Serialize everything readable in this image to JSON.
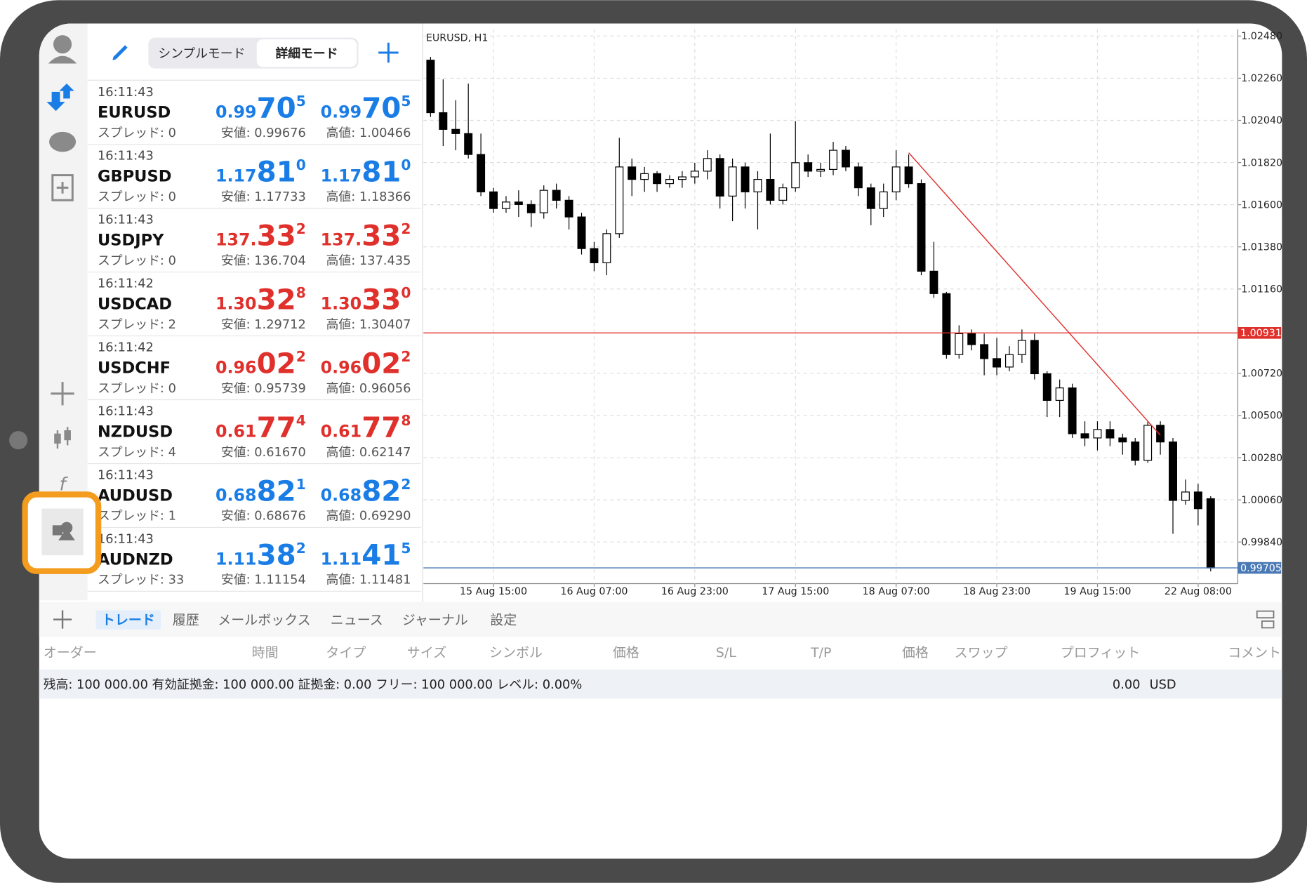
{
  "toolbar": {
    "modes": [
      "シンプルモード",
      "詳細モード"
    ]
  },
  "quotes": [
    {
      "time": "16:11:43",
      "symbol": "EURUSD",
      "spread": "スプレッド: 0",
      "bid": [
        "0.99",
        "70",
        "5"
      ],
      "ask": [
        "0.99",
        "70",
        "5"
      ],
      "low": "安値: 0.99676",
      "high": "高値: 1.00466",
      "color": "#1a7de6"
    },
    {
      "time": "16:11:43",
      "symbol": "GBPUSD",
      "spread": "スプレッド: 0",
      "bid": [
        "1.17",
        "81",
        "0"
      ],
      "ask": [
        "1.17",
        "81",
        "0"
      ],
      "low": "安値: 1.17733",
      "high": "高値: 1.18366",
      "color": "#1a7de6"
    },
    {
      "time": "16:11:43",
      "symbol": "USDJPY",
      "spread": "スプレッド: 0",
      "bid": [
        "137.",
        "33",
        "2"
      ],
      "ask": [
        "137.",
        "33",
        "2"
      ],
      "low": "安値: 136.704",
      "high": "高値: 137.435",
      "color": "#e0302c"
    },
    {
      "time": "16:11:42",
      "symbol": "USDCAD",
      "spread": "スプレッド: 2",
      "bid": [
        "1.30",
        "32",
        "8"
      ],
      "ask": [
        "1.30",
        "33",
        "0"
      ],
      "low": "安値: 1.29712",
      "high": "高値: 1.30407",
      "color": "#e0302c"
    },
    {
      "time": "16:11:42",
      "symbol": "USDCHF",
      "spread": "スプレッド: 0",
      "bid": [
        "0.96",
        "02",
        "2"
      ],
      "ask": [
        "0.96",
        "02",
        "2"
      ],
      "low": "安値: 0.95739",
      "high": "高値: 0.96056",
      "color": "#e0302c"
    },
    {
      "time": "16:11:43",
      "symbol": "NZDUSD",
      "spread": "スプレッド: 4",
      "bid": [
        "0.61",
        "77",
        "4"
      ],
      "ask": [
        "0.61",
        "77",
        "8"
      ],
      "low": "安値: 0.61670",
      "high": "高値: 0.62147",
      "color": "#e0302c"
    },
    {
      "time": "16:11:43",
      "symbol": "AUDUSD",
      "spread": "スプレッド: 1",
      "bid": [
        "0.68",
        "82",
        "1"
      ],
      "ask": [
        "0.68",
        "82",
        "2"
      ],
      "low": "安値: 0.68676",
      "high": "高値: 0.69290",
      "color": "#1a7de6"
    },
    {
      "time": "16:11:43",
      "symbol": "AUDNZD",
      "spread": "スプレッド: 33",
      "bid": [
        "1.11",
        "38",
        "2"
      ],
      "ask": [
        "1.11",
        "41",
        "5"
      ],
      "low": "安値: 1.11154",
      "high": "高値: 1.11481",
      "color": "#1a7de6"
    }
  ],
  "chart_data": {
    "type": "candlestick",
    "title": "EURUSD, H1",
    "categories": [
      null,
      null,
      null,
      null,
      null,
      "15 Aug 15:00",
      null,
      null,
      null,
      null,
      null,
      null,
      null,
      "16 Aug 07:00",
      null,
      null,
      null,
      null,
      null,
      null,
      null,
      "16 Aug 23:00",
      null,
      null,
      null,
      null,
      null,
      null,
      null,
      "17 Aug 15:00",
      null,
      null,
      null,
      null,
      null,
      null,
      null,
      "18 Aug 07:00",
      null,
      null,
      null,
      null,
      null,
      null,
      null,
      "18 Aug 23:00",
      null,
      null,
      null,
      null,
      null,
      null,
      null,
      "19 Aug 15:00",
      null,
      null,
      null,
      null,
      null,
      null,
      null,
      "22 Aug 08:00",
      null
    ],
    "ohlc": [
      [
        1.02354,
        1.02371,
        1.02058,
        1.0208
      ],
      [
        1.0208,
        1.02254,
        1.01906,
        1.01993
      ],
      [
        1.01993,
        1.02145,
        1.01884,
        1.01971
      ],
      [
        1.01971,
        1.02232,
        1.01841,
        1.01862
      ],
      [
        1.01862,
        1.01971,
        1.01645,
        1.01667
      ],
      [
        1.01667,
        1.01688,
        1.01558,
        1.0158
      ],
      [
        1.0158,
        1.01645,
        1.01558,
        1.01614
      ],
      [
        1.01614,
        1.01675,
        1.01536,
        1.01601
      ],
      [
        1.01601,
        1.01623,
        1.01484,
        1.01558
      ],
      [
        1.01558,
        1.01701,
        1.01527,
        1.01675
      ],
      [
        1.01675,
        1.0171,
        1.0158,
        1.01623
      ],
      [
        1.01623,
        1.01645,
        1.01471,
        1.01536
      ],
      [
        1.01536,
        1.01558,
        1.0134,
        1.01371
      ],
      [
        1.01371,
        1.01406,
        1.01253,
        1.01297
      ],
      [
        1.01297,
        1.01471,
        1.01232,
        1.01449
      ],
      [
        1.01449,
        1.01949,
        1.01427,
        1.01797
      ],
      [
        1.01797,
        1.01841,
        1.01645,
        1.01732
      ],
      [
        1.01732,
        1.01797,
        1.01667,
        1.01762
      ],
      [
        1.01762,
        1.01775,
        1.01667,
        1.0171
      ],
      [
        1.0171,
        1.01754,
        1.01688,
        1.01732
      ],
      [
        1.01732,
        1.01775,
        1.01688,
        1.01745
      ],
      [
        1.01745,
        1.01819,
        1.0171,
        1.01775
      ],
      [
        1.01775,
        1.01884,
        1.01732,
        1.01841
      ],
      [
        1.01841,
        1.01862,
        1.0158,
        1.01645
      ],
      [
        1.01645,
        1.01841,
        1.01514,
        1.01797
      ],
      [
        1.01797,
        1.01819,
        1.0158,
        1.01667
      ],
      [
        1.01667,
        1.01775,
        1.01471,
        1.01732
      ],
      [
        1.01732,
        1.01971,
        1.01601,
        1.01623
      ],
      [
        1.01623,
        1.0171,
        1.01601,
        1.01688
      ],
      [
        1.01688,
        1.02036,
        1.01667,
        1.01819
      ],
      [
        1.01819,
        1.01862,
        1.01745,
        1.01775
      ],
      [
        1.01775,
        1.01819,
        1.01745,
        1.01784
      ],
      [
        1.01784,
        1.01928,
        1.01754,
        1.01884
      ],
      [
        1.01884,
        1.01906,
        1.01775,
        1.01797
      ],
      [
        1.01797,
        1.01819,
        1.01645,
        1.01688
      ],
      [
        1.01688,
        1.0171,
        1.01493,
        1.0158
      ],
      [
        1.0158,
        1.0171,
        1.01536,
        1.01667
      ],
      [
        1.01667,
        1.01884,
        1.01623,
        1.01797
      ],
      [
        1.01797,
        1.01862,
        1.01688,
        1.0171
      ],
      [
        1.0171,
        1.01732,
        1.01232,
        1.01253
      ],
      [
        1.01253,
        1.01406,
        1.01114,
        1.01136
      ],
      [
        1.01136,
        1.01145,
        1.00797,
        1.00818
      ],
      [
        1.00818,
        1.00971,
        1.00797,
        1.00927
      ],
      [
        1.00927,
        1.00949,
        1.0084,
        1.0087
      ],
      [
        1.0087,
        1.00927,
        1.0071,
        1.00797
      ],
      [
        1.00797,
        1.00905,
        1.0071,
        1.00753
      ],
      [
        1.00753,
        1.00862,
        1.00731,
        1.00818
      ],
      [
        1.00818,
        1.00949,
        1.00775,
        1.00892
      ],
      [
        1.00892,
        1.00927,
        1.00688,
        1.00718
      ],
      [
        1.00718,
        1.00731,
        1.00492,
        1.00579
      ],
      [
        1.00579,
        1.00688,
        1.00492,
        1.00644
      ],
      [
        1.00644,
        1.00666,
        1.00383,
        1.00405
      ],
      [
        1.00405,
        1.0047,
        1.0034,
        1.00383
      ],
      [
        1.00383,
        1.0047,
        1.00318,
        1.00427
      ],
      [
        1.00427,
        1.0047,
        1.0034,
        1.00383
      ],
      [
        1.00383,
        1.00405,
        1.00296,
        1.00362
      ],
      [
        1.00362,
        1.00383,
        1.0024,
        1.00266
      ],
      [
        1.00266,
        1.0047,
        1.00253,
        1.00449
      ],
      [
        1.00449,
        1.0047,
        1.00296,
        1.00362
      ],
      [
        1.00362,
        1.00383,
        0.99883,
        1.00057
      ],
      [
        1.00057,
        1.00166,
        1.00035,
        1.00101
      ],
      [
        1.00101,
        1.00144,
        0.99927,
        1.00014
      ],
      [
        1.00066,
        1.00079,
        0.99687,
        0.99705
      ]
    ],
    "ylim": [
      0.99623,
      1.02515
    ],
    "yticks": [
      {
        "value": 1.0248,
        "label": "1.02480"
      },
      {
        "value": 1.0226,
        "label": "1.02260"
      },
      {
        "value": 1.0204,
        "label": "1.02040"
      },
      {
        "value": 1.0182,
        "label": "1.01820"
      },
      {
        "value": 1.016,
        "label": "1.01600"
      },
      {
        "value": 1.0138,
        "label": "1.01380"
      },
      {
        "value": 1.0116,
        "label": "1.01160"
      },
      {
        "value": 1.0072,
        "label": "1.00720"
      },
      {
        "value": 1.005,
        "label": "1.00500"
      },
      {
        "value": 1.0028,
        "label": "1.00280"
      },
      {
        "value": 1.0006,
        "label": "1.00060"
      },
      {
        "value": 0.9984,
        "label": "0.99840"
      }
    ],
    "hlines": [
      {
        "value": 1.00931,
        "color": "#e0302c"
      },
      {
        "value": 0.99705,
        "color": "#4a7ab5"
      }
    ],
    "trendline": {
      "x": [
        38,
        58
      ],
      "y": [
        1.01871,
        1.00397
      ],
      "color": "#e0302c"
    },
    "grid": true
  },
  "bottom": {
    "tabs": [
      "トレード",
      "履歴",
      "メールボックス",
      "ニュース",
      "ジャーナル",
      "設定"
    ],
    "columns": [
      "オーダー",
      "時間",
      "タイプ",
      "サイズ",
      "シンボル",
      "価格",
      "S/L",
      "T/P",
      "価格",
      "スワップ",
      "プロフィット",
      "コメント"
    ],
    "balance": "残高: 100 000.00 有効証拠金: 100 000.00 証拠金: 0.00 フリー: 100 000.00 レベル: 0.00%",
    "profit": "0.00",
    "currency": "USD"
  }
}
